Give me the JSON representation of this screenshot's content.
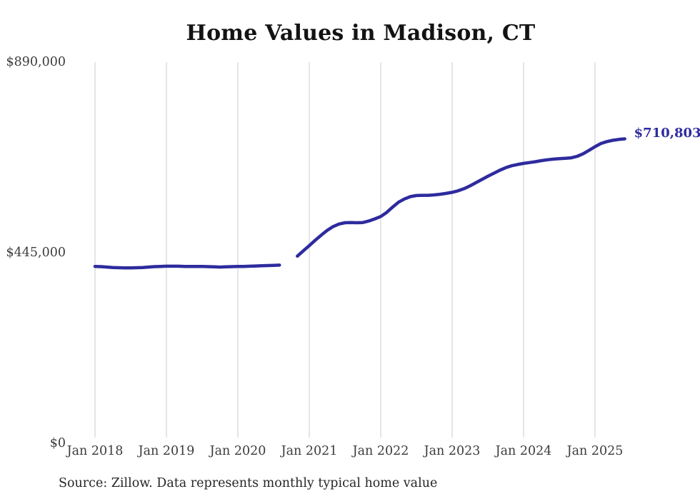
{
  "title": "Home Values in Madison, CT",
  "source_note": "Source: Zillow. Data represents monthly typical home value",
  "colors": {
    "line": "#2e2b9e",
    "annotation": "#2e2b9e",
    "grid": "#cbcbcb",
    "tick_text": "#3c3c3c",
    "title_text": "#131313",
    "source_text": "#262626",
    "background": "#ffffff"
  },
  "chart_data": {
    "type": "line",
    "title": "Home Values in Madison, CT",
    "xlabel": "",
    "ylabel": "",
    "ylim": [
      0,
      890000
    ],
    "grid": "vertical-only",
    "legend": "none",
    "y_ticks": [
      {
        "label": "$890,000",
        "value": 890000
      },
      {
        "label": "$445,000",
        "value": 445000
      },
      {
        "label": "$0",
        "value": 0
      }
    ],
    "x_ticks": [
      {
        "label": "Jan 2018",
        "date": "2018-01"
      },
      {
        "label": "Jan 2019",
        "date": "2019-01"
      },
      {
        "label": "Jan 2020",
        "date": "2020-01"
      },
      {
        "label": "Jan 2021",
        "date": "2021-01"
      },
      {
        "label": "Jan 2022",
        "date": "2022-01"
      },
      {
        "label": "Jan 2023",
        "date": "2023-01"
      },
      {
        "label": "Jan 2024",
        "date": "2024-01"
      },
      {
        "label": "Jan 2025",
        "date": "2025-01"
      }
    ],
    "annotation": {
      "label": "$710,803",
      "date": "2025-06",
      "value": 710803
    },
    "series": [
      {
        "name": "Monthly typical home value",
        "color": "#2e2b9e",
        "segments": [
          {
            "points": [
              {
                "date": "2018-01",
                "value": 413000
              },
              {
                "date": "2018-02",
                "value": 412500
              },
              {
                "date": "2018-03",
                "value": 411500
              },
              {
                "date": "2018-04",
                "value": 410500
              },
              {
                "date": "2018-05",
                "value": 410000
              },
              {
                "date": "2018-06",
                "value": 409500
              },
              {
                "date": "2018-07",
                "value": 409500
              },
              {
                "date": "2018-08",
                "value": 410000
              },
              {
                "date": "2018-09",
                "value": 410500
              },
              {
                "date": "2018-10",
                "value": 411500
              },
              {
                "date": "2018-11",
                "value": 412500
              },
              {
                "date": "2018-12",
                "value": 413000
              },
              {
                "date": "2019-01",
                "value": 413500
              },
              {
                "date": "2019-02",
                "value": 413500
              },
              {
                "date": "2019-03",
                "value": 413500
              },
              {
                "date": "2019-04",
                "value": 413000
              },
              {
                "date": "2019-05",
                "value": 413000
              },
              {
                "date": "2019-06",
                "value": 413000
              },
              {
                "date": "2019-07",
                "value": 413000
              },
              {
                "date": "2019-08",
                "value": 412500
              },
              {
                "date": "2019-09",
                "value": 412000
              },
              {
                "date": "2019-10",
                "value": 411500
              },
              {
                "date": "2019-11",
                "value": 412000
              },
              {
                "date": "2019-12",
                "value": 412500
              },
              {
                "date": "2020-01",
                "value": 413000
              },
              {
                "date": "2020-02",
                "value": 413000
              },
              {
                "date": "2020-03",
                "value": 413500
              },
              {
                "date": "2020-04",
                "value": 414000
              },
              {
                "date": "2020-05",
                "value": 414500
              },
              {
                "date": "2020-06",
                "value": 415000
              },
              {
                "date": "2020-07",
                "value": 415500
              },
              {
                "date": "2020-08",
                "value": 416000
              }
            ]
          },
          {
            "points": [
              {
                "date": "2020-11",
                "value": 437000
              },
              {
                "date": "2020-12",
                "value": 449500
              },
              {
                "date": "2021-01",
                "value": 461500
              },
              {
                "date": "2021-02",
                "value": 474000
              },
              {
                "date": "2021-03",
                "value": 486000
              },
              {
                "date": "2021-04",
                "value": 497000
              },
              {
                "date": "2021-05",
                "value": 506000
              },
              {
                "date": "2021-06",
                "value": 512000
              },
              {
                "date": "2021-07",
                "value": 515000
              },
              {
                "date": "2021-08",
                "value": 515500
              },
              {
                "date": "2021-09",
                "value": 515000
              },
              {
                "date": "2021-10",
                "value": 515500
              },
              {
                "date": "2021-11",
                "value": 519000
              },
              {
                "date": "2021-12",
                "value": 524000
              },
              {
                "date": "2022-01",
                "value": 529500
              },
              {
                "date": "2022-02",
                "value": 539000
              },
              {
                "date": "2022-03",
                "value": 551500
              },
              {
                "date": "2022-04",
                "value": 563000
              },
              {
                "date": "2022-05",
                "value": 570500
              },
              {
                "date": "2022-06",
                "value": 576000
              },
              {
                "date": "2022-07",
                "value": 578500
              },
              {
                "date": "2022-08",
                "value": 579000
              },
              {
                "date": "2022-09",
                "value": 579000
              },
              {
                "date": "2022-10",
                "value": 580000
              },
              {
                "date": "2022-11",
                "value": 581500
              },
              {
                "date": "2022-12",
                "value": 583500
              },
              {
                "date": "2023-01",
                "value": 586000
              },
              {
                "date": "2023-02",
                "value": 589500
              },
              {
                "date": "2023-03",
                "value": 594500
              },
              {
                "date": "2023-04",
                "value": 601000
              },
              {
                "date": "2023-05",
                "value": 608500
              },
              {
                "date": "2023-06",
                "value": 616000
              },
              {
                "date": "2023-07",
                "value": 623500
              },
              {
                "date": "2023-08",
                "value": 630500
              },
              {
                "date": "2023-09",
                "value": 637500
              },
              {
                "date": "2023-10",
                "value": 643500
              },
              {
                "date": "2023-11",
                "value": 648000
              },
              {
                "date": "2023-12",
                "value": 651000
              },
              {
                "date": "2024-01",
                "value": 653500
              },
              {
                "date": "2024-02",
                "value": 655500
              },
              {
                "date": "2024-03",
                "value": 657500
              },
              {
                "date": "2024-04",
                "value": 660000
              },
              {
                "date": "2024-05",
                "value": 662000
              },
              {
                "date": "2024-06",
                "value": 663500
              },
              {
                "date": "2024-07",
                "value": 664500
              },
              {
                "date": "2024-08",
                "value": 665500
              },
              {
                "date": "2024-09",
                "value": 666500
              },
              {
                "date": "2024-10",
                "value": 670000
              },
              {
                "date": "2024-11",
                "value": 676000
              },
              {
                "date": "2024-12",
                "value": 684000
              },
              {
                "date": "2025-01",
                "value": 692500
              },
              {
                "date": "2025-02",
                "value": 700000
              },
              {
                "date": "2025-03",
                "value": 704500
              },
              {
                "date": "2025-04",
                "value": 707500
              },
              {
                "date": "2025-05",
                "value": 709500
              },
              {
                "date": "2025-06",
                "value": 710803
              }
            ]
          }
        ]
      }
    ]
  }
}
